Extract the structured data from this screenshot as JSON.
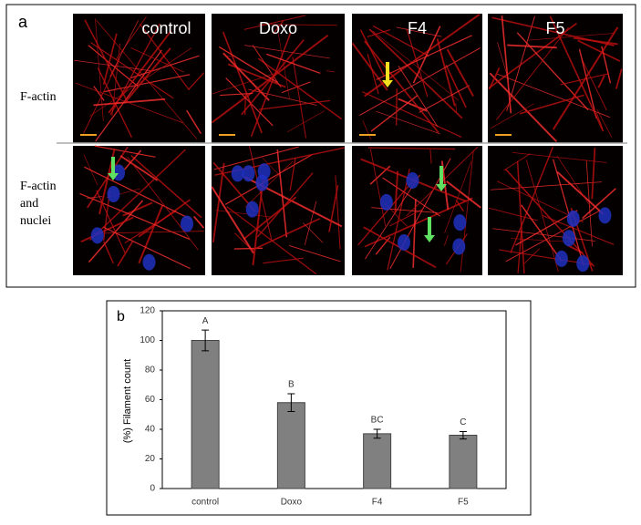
{
  "panel_a": {
    "label": "a",
    "columns": [
      "control",
      "Doxo",
      "F4",
      "F5"
    ],
    "rows": [
      "F-actin",
      "F-actin",
      "and",
      "nuclei"
    ]
  },
  "chart_data": {
    "type": "bar",
    "panel_label": "b",
    "y_label": "(%)  Filament count",
    "categories": [
      "control",
      "Doxo",
      "F4",
      "F5"
    ],
    "values": [
      100,
      58,
      37,
      36
    ],
    "errors": [
      7,
      6,
      3,
      2.5
    ],
    "annotations": [
      "A",
      "B",
      "BC",
      "C"
    ],
    "color": "#808080",
    "ylim": [
      0,
      120
    ],
    "yticks": [
      0,
      20,
      40,
      60,
      80,
      100,
      120
    ]
  }
}
